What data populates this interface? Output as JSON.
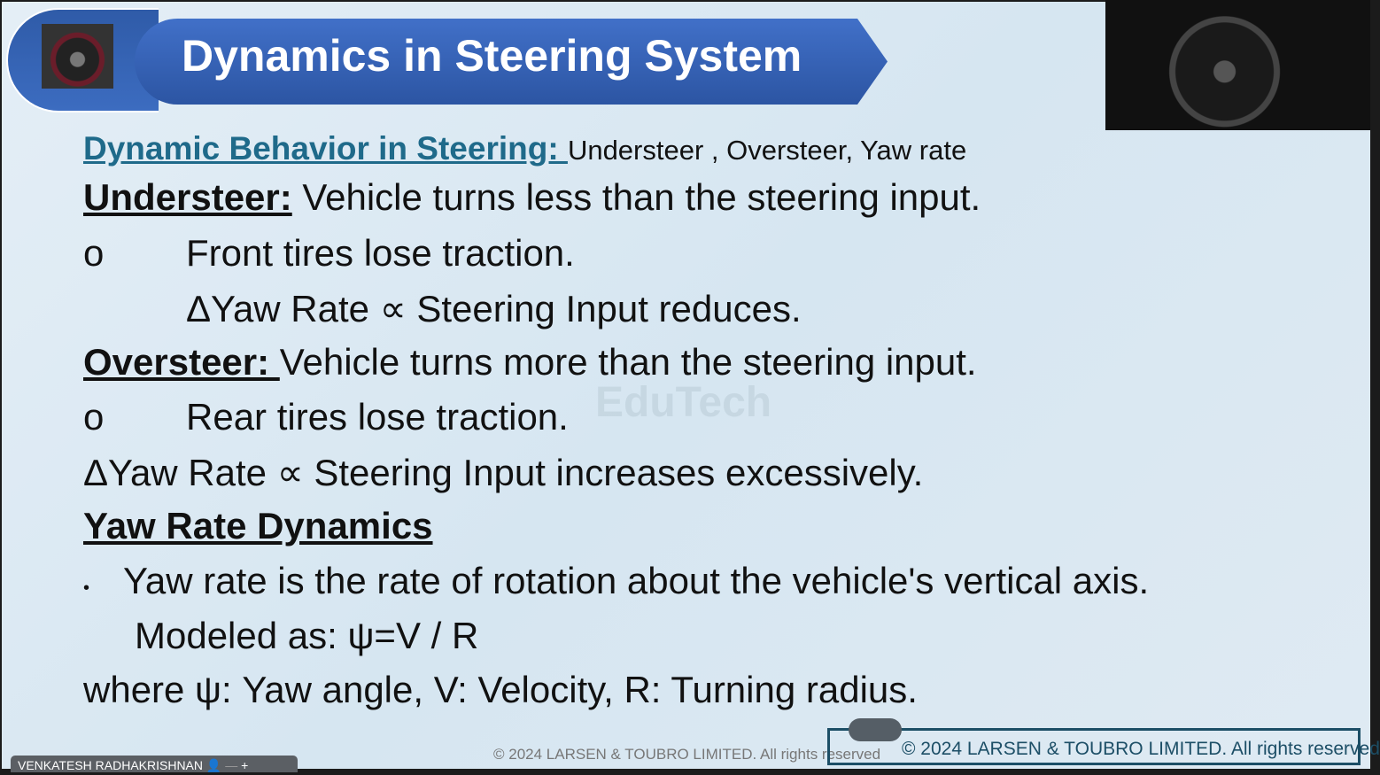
{
  "slide": {
    "title": "Dynamics in Steering System",
    "watermark": "EduTech",
    "subtitle_heading": "Dynamic Behavior in Steering: ",
    "subtitle_rest": "Understeer , Oversteer, Yaw rate",
    "understeer_label": "Understeer:",
    "understeer_text": " Vehicle turns less than the steering input.",
    "bullet_o": "o",
    "understeer_b1": "Front tires lose traction.",
    "understeer_b2": "ΔYaw Rate ∝ Steering Input reduces.",
    "oversteer_label": "Oversteer: ",
    "oversteer_text": "Vehicle turns more than the steering input.",
    "oversteer_b1": "Rear tires lose traction.",
    "oversteer_b2": "ΔYaw Rate ∝ Steering Input increases excessively.",
    "yaw_heading": "Yaw Rate Dynamics",
    "bullet_dot": "•",
    "yaw_b1": "Yaw rate is the rate of rotation about the vehicle's vertical axis.",
    "yaw_b2": "Modeled as: ψ=V / R",
    "yaw_where": "where ψ: Yaw angle, V: Velocity, R: Turning radius.",
    "footer_faint": "© 2024 LARSEN & TOUBRO LIMITED. All rights reserved",
    "footer": "© 2024 LARSEN & TOUBRO LIMITED. All rights reserved"
  },
  "participant": {
    "name": "VENKATESH RADHAKRISHNAN",
    "icons": [
      "person-icon",
      "minimize-icon",
      "add-icon"
    ]
  },
  "colors": {
    "banner": "#2f5ba8",
    "heading_teal": "#1f6a8a",
    "footer": "#1c4e66"
  }
}
